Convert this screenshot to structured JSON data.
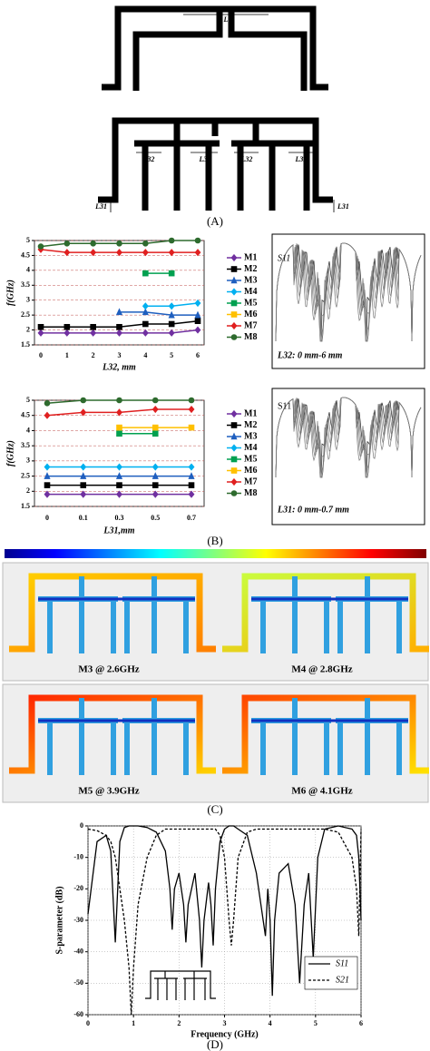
{
  "panels": {
    "a": {
      "label": "(A)",
      "dims": [
        "L",
        "L32",
        "L32",
        "L32",
        "L32",
        "L31",
        "L31"
      ]
    },
    "b": {
      "label": "(B)",
      "insets": [
        {
          "title": "S11",
          "note": "L32: 0 mm-6 mm"
        },
        {
          "title": "S11",
          "note": "L31: 0 mm-0.7 mm"
        }
      ]
    },
    "c": {
      "label": "(C)",
      "modes": [
        "M3 @ 2.6GHz",
        "M4 @ 2.8GHz",
        "M5 @ 3.9GHz",
        "M6 @ 4.1GHz"
      ]
    },
    "d": {
      "label": "(D)"
    }
  },
  "chart_data": [
    {
      "type": "line",
      "x_label": "L32, mm",
      "y_label": "f(GHz)",
      "categories": [
        "0",
        "1",
        "2",
        "3",
        "4",
        "5",
        "6"
      ],
      "ylim": [
        1.5,
        5
      ],
      "yticks": [
        1.5,
        2,
        2.5,
        3,
        3.5,
        4,
        4.5,
        5
      ],
      "grid": true,
      "legend": "right",
      "series": [
        {
          "name": "M1",
          "color": "#7030a0",
          "marker": "diamond",
          "values": [
            1.9,
            1.9,
            1.9,
            1.9,
            1.9,
            1.9,
            2.0
          ]
        },
        {
          "name": "M2",
          "color": "#000000",
          "marker": "square",
          "values": [
            2.1,
            2.1,
            2.1,
            2.1,
            2.2,
            2.2,
            2.3
          ]
        },
        {
          "name": "M3",
          "color": "#1f5fbf",
          "marker": "triangle",
          "values": [
            null,
            null,
            null,
            2.6,
            2.6,
            2.5,
            2.5
          ]
        },
        {
          "name": "M4",
          "color": "#00b0f0",
          "marker": "diamond",
          "values": [
            null,
            null,
            null,
            null,
            2.8,
            2.8,
            2.9
          ]
        },
        {
          "name": "M5",
          "color": "#00a050",
          "marker": "square",
          "values": [
            null,
            null,
            null,
            null,
            3.9,
            3.9,
            null
          ]
        },
        {
          "name": "M6",
          "color": "#ffc000",
          "marker": "square",
          "values": [
            null,
            null,
            null,
            null,
            null,
            null,
            null
          ]
        },
        {
          "name": "M7",
          "color": "#e02020",
          "marker": "diamond",
          "values": [
            4.7,
            4.6,
            4.6,
            4.6,
            4.6,
            4.6,
            4.6
          ]
        },
        {
          "name": "M8",
          "color": "#2e6b2e",
          "marker": "circle",
          "values": [
            4.8,
            4.9,
            4.9,
            4.9,
            4.9,
            5.0,
            5.0
          ]
        }
      ]
    },
    {
      "type": "line",
      "x_label": "L31,mm",
      "y_label": "f(GHz)",
      "categories": [
        "0",
        "0.1",
        "0.3",
        "0.5",
        "0.7"
      ],
      "ylim": [
        1.5,
        5
      ],
      "yticks": [
        1.5,
        2,
        2.5,
        3,
        3.5,
        4,
        4.5,
        5
      ],
      "grid": true,
      "legend": "right",
      "series": [
        {
          "name": "M1",
          "color": "#7030a0",
          "marker": "diamond",
          "values": [
            1.9,
            1.9,
            1.9,
            1.9,
            1.9
          ]
        },
        {
          "name": "M2",
          "color": "#000000",
          "marker": "square",
          "values": [
            2.2,
            2.2,
            2.2,
            2.2,
            2.2
          ]
        },
        {
          "name": "M3",
          "color": "#1f5fbf",
          "marker": "triangle",
          "values": [
            2.5,
            2.5,
            2.5,
            2.5,
            2.5
          ]
        },
        {
          "name": "M4",
          "color": "#00b0f0",
          "marker": "diamond",
          "values": [
            2.8,
            2.8,
            2.8,
            2.8,
            2.8
          ]
        },
        {
          "name": "M5",
          "color": "#00a050",
          "marker": "square",
          "values": [
            null,
            null,
            3.9,
            3.9,
            null
          ]
        },
        {
          "name": "M6",
          "color": "#ffc000",
          "marker": "square",
          "values": [
            null,
            null,
            4.1,
            4.1,
            4.1
          ]
        },
        {
          "name": "M7",
          "color": "#e02020",
          "marker": "diamond",
          "values": [
            4.5,
            4.6,
            4.6,
            4.7,
            4.7
          ]
        },
        {
          "name": "M8",
          "color": "#2e6b2e",
          "marker": "circle",
          "values": [
            4.9,
            5.0,
            5.0,
            5.0,
            5.0
          ]
        }
      ]
    },
    {
      "type": "line",
      "x_label": "Frequency (GHz)",
      "y_label": "S-parameter (dB)",
      "x": [
        0,
        0.2,
        0.4,
        0.5,
        0.6,
        0.7,
        0.8,
        0.9,
        0.95,
        1.0,
        1.1,
        1.3,
        1.5,
        1.7,
        1.8,
        1.85,
        1.9,
        2.0,
        2.1,
        2.15,
        2.2,
        2.35,
        2.45,
        2.5,
        2.55,
        2.65,
        2.7,
        2.75,
        2.8,
        2.9,
        3.0,
        3.1,
        3.15,
        3.2,
        3.3,
        3.5,
        3.7,
        3.8,
        3.9,
        3.95,
        4.0,
        4.05,
        4.1,
        4.2,
        4.4,
        4.55,
        4.65,
        4.75,
        4.85,
        4.95,
        5.05,
        5.2,
        5.5,
        5.8,
        5.9,
        5.95,
        6.0
      ],
      "xlim": [
        0,
        6
      ],
      "xticks": [
        0,
        1,
        2,
        3,
        4,
        5,
        6
      ],
      "ylim": [
        -60,
        0
      ],
      "yticks": [
        0,
        -10,
        -20,
        -30,
        -40,
        -50,
        -60
      ],
      "grid": true,
      "legend": "lower right",
      "series": [
        {
          "name": "S11",
          "color": "#000000",
          "dash": false,
          "values": [
            -28,
            -5,
            -3,
            -8,
            -37,
            -5,
            -0.5,
            0,
            0,
            0,
            0,
            -0.5,
            -2,
            -8,
            -20,
            -33,
            -20,
            -15,
            -25,
            -37,
            -25,
            -15,
            -30,
            -45,
            -30,
            -18,
            -25,
            -38,
            -20,
            -5,
            -1,
            0,
            0,
            0,
            -1,
            -3,
            -15,
            -25,
            -35,
            -20,
            -30,
            -54,
            -30,
            -15,
            -12,
            -25,
            -50,
            -25,
            -15,
            -42,
            -10,
            -1,
            0,
            -1,
            -3,
            -10,
            -30
          ]
        },
        {
          "name": "S21",
          "color": "#000000",
          "dash": true,
          "values": [
            -1,
            -1.5,
            -3,
            -5,
            -10,
            -20,
            -30,
            -45,
            -60,
            -45,
            -25,
            -10,
            -3,
            -1,
            -1,
            -1,
            -1,
            -1,
            -1,
            -1,
            -1,
            -1,
            -1,
            -1,
            -1,
            -1,
            -1,
            -1,
            -1,
            -3,
            -10,
            -30,
            -38,
            -30,
            -10,
            -2,
            -1,
            -1,
            -1,
            -1,
            -1,
            -1,
            -1,
            -1,
            -1,
            -1,
            -1,
            -1,
            -1,
            -1,
            -1,
            -1,
            -2,
            -10,
            -20,
            -35,
            -1
          ]
        }
      ]
    }
  ]
}
